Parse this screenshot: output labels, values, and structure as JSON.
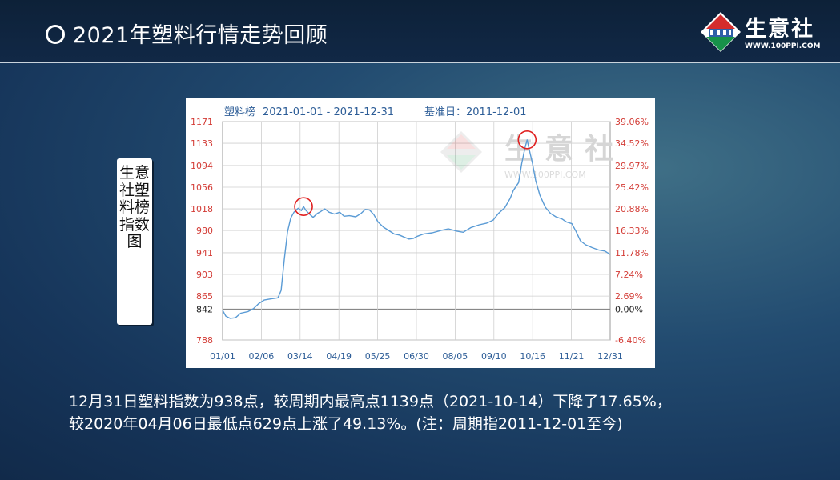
{
  "header": {
    "title": "2021年塑料行情走势回顾",
    "logo_name": "生意社",
    "logo_url": "WWW.100PPI.COM"
  },
  "side_label": "生意社塑料榜指数图",
  "chart_header": {
    "name": "塑料榜",
    "range": "2021-01-01 - 2021-12-31",
    "base": "基准日：2011-12-01"
  },
  "watermark": {
    "text": "生意社",
    "url": "WWW.100PPI.COM"
  },
  "chart_data": {
    "type": "line",
    "xlabel": "",
    "ylabel": "",
    "x_tick_labels": [
      "01/01",
      "02/06",
      "03/14",
      "04/19",
      "05/25",
      "06/30",
      "08/05",
      "09/10",
      "10/16",
      "11/21",
      "12/31"
    ],
    "y_left_ticks": [
      1171,
      1133,
      1094,
      1056,
      1018,
      980,
      941,
      903,
      865,
      842,
      788
    ],
    "y_right_ticks": [
      "39.06%",
      "34.52%",
      "29.97%",
      "25.42%",
      "20.88%",
      "16.33%",
      "11.78%",
      "7.24%",
      "2.69%",
      "0.00%",
      "-6.40%"
    ],
    "ylim": [
      788,
      1171
    ],
    "baseline": 842,
    "grid": true,
    "series": [
      {
        "name": "",
        "color": "#5a9bd5",
        "points": [
          [
            "2021-01-01",
            840
          ],
          [
            "2021-01-04",
            830
          ],
          [
            "2021-01-08",
            826
          ],
          [
            "2021-01-13",
            827
          ],
          [
            "2021-01-18",
            835
          ],
          [
            "2021-01-25",
            838
          ],
          [
            "2021-01-30",
            843
          ],
          [
            "2021-02-04",
            852
          ],
          [
            "2021-02-09",
            858
          ],
          [
            "2021-02-15",
            860
          ],
          [
            "2021-02-22",
            862
          ],
          [
            "2021-02-25",
            875
          ],
          [
            "2021-02-28",
            930
          ],
          [
            "2021-03-03",
            978
          ],
          [
            "2021-03-06",
            1002
          ],
          [
            "2021-03-09",
            1012
          ],
          [
            "2021-03-13",
            1019
          ],
          [
            "2021-03-16",
            1015
          ],
          [
            "2021-03-18",
            1022
          ],
          [
            "2021-03-20",
            1016
          ],
          [
            "2021-03-23",
            1010
          ],
          [
            "2021-03-27",
            1003
          ],
          [
            "2021-03-31",
            1010
          ],
          [
            "2021-04-03",
            1013
          ],
          [
            "2021-04-07",
            1018
          ],
          [
            "2021-04-11",
            1012
          ],
          [
            "2021-04-16",
            1009
          ],
          [
            "2021-04-21",
            1012
          ],
          [
            "2021-04-25",
            1005
          ],
          [
            "2021-04-30",
            1006
          ],
          [
            "2021-05-06",
            1004
          ],
          [
            "2021-05-11",
            1010
          ],
          [
            "2021-05-15",
            1017
          ],
          [
            "2021-05-19",
            1016
          ],
          [
            "2021-05-23",
            1008
          ],
          [
            "2021-05-27",
            995
          ],
          [
            "2021-06-01",
            986
          ],
          [
            "2021-06-06",
            980
          ],
          [
            "2021-06-11",
            974
          ],
          [
            "2021-06-16",
            972
          ],
          [
            "2021-06-21",
            968
          ],
          [
            "2021-06-25",
            965
          ],
          [
            "2021-06-29",
            966
          ],
          [
            "2021-07-03",
            970
          ],
          [
            "2021-07-09",
            974
          ],
          [
            "2021-07-17",
            976
          ],
          [
            "2021-07-25",
            980
          ],
          [
            "2021-08-01",
            983
          ],
          [
            "2021-08-09",
            979
          ],
          [
            "2021-08-15",
            977
          ],
          [
            "2021-08-22",
            985
          ],
          [
            "2021-08-30",
            990
          ],
          [
            "2021-09-06",
            993
          ],
          [
            "2021-09-12",
            998
          ],
          [
            "2021-09-17",
            1010
          ],
          [
            "2021-09-23",
            1020
          ],
          [
            "2021-09-28",
            1036
          ],
          [
            "2021-10-01",
            1050
          ],
          [
            "2021-10-06",
            1064
          ],
          [
            "2021-10-09",
            1098
          ],
          [
            "2021-10-12",
            1125
          ],
          [
            "2021-10-14",
            1139
          ],
          [
            "2021-10-16",
            1122
          ],
          [
            "2021-10-19",
            1098
          ],
          [
            "2021-10-22",
            1068
          ],
          [
            "2021-10-26",
            1042
          ],
          [
            "2021-10-31",
            1021
          ],
          [
            "2021-11-05",
            1010
          ],
          [
            "2021-11-10",
            1004
          ],
          [
            "2021-11-16",
            1000
          ],
          [
            "2021-11-20",
            995
          ],
          [
            "2021-11-25",
            992
          ],
          [
            "2021-11-29",
            978
          ],
          [
            "2021-12-03",
            962
          ],
          [
            "2021-12-08",
            955
          ],
          [
            "2021-12-14",
            950
          ],
          [
            "2021-12-20",
            946
          ],
          [
            "2021-12-26",
            944
          ],
          [
            "2021-12-31",
            938
          ]
        ]
      }
    ],
    "highlighted_points": [
      "2021-03-18",
      "2021-10-14"
    ]
  },
  "caption_lines": [
    "12月31日塑料指数为938点，较周期内最高点1139点（2021-10-14）下降了17.65%，",
    "较2020年04月06日最低点629点上涨了49.13%。(注：周期指2011-12-01至今)"
  ],
  "colors": {
    "line": "#5a9bd5",
    "header_text": "#2d5d97",
    "left_tick": "#d33b35",
    "right_tick": "#d33b35",
    "baseline_tick": "#222222",
    "marker": "#e02020",
    "grid": "#cfcfcf",
    "logo_green": "#17924a",
    "logo_red": "#d42c2c"
  }
}
